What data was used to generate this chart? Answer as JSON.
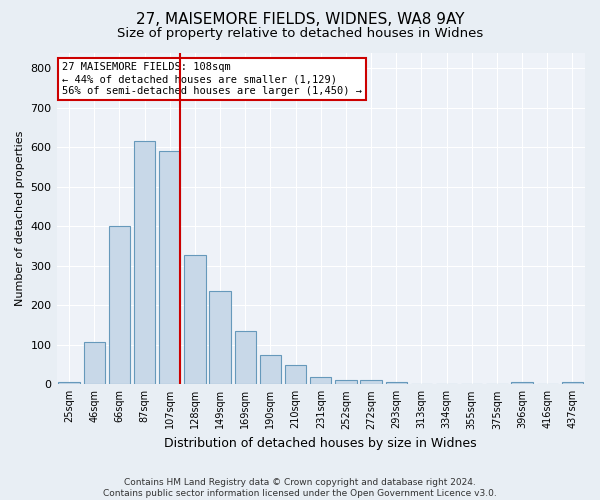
{
  "title": "27, MAISEMORE FIELDS, WIDNES, WA8 9AY",
  "subtitle": "Size of property relative to detached houses in Widnes",
  "xlabel": "Distribution of detached houses by size in Widnes",
  "ylabel": "Number of detached properties",
  "footer": "Contains HM Land Registry data © Crown copyright and database right 2024.\nContains public sector information licensed under the Open Government Licence v3.0.",
  "bin_labels": [
    "25sqm",
    "46sqm",
    "66sqm",
    "87sqm",
    "107sqm",
    "128sqm",
    "149sqm",
    "169sqm",
    "190sqm",
    "210sqm",
    "231sqm",
    "252sqm",
    "272sqm",
    "293sqm",
    "313sqm",
    "334sqm",
    "355sqm",
    "375sqm",
    "396sqm",
    "416sqm",
    "437sqm"
  ],
  "bar_heights": [
    5,
    107,
    400,
    615,
    590,
    328,
    235,
    135,
    75,
    50,
    18,
    12,
    12,
    5,
    0,
    0,
    0,
    0,
    5,
    0,
    5
  ],
  "bar_color": "#c8d8e8",
  "bar_edge_color": "#6699bb",
  "property_line_color": "#cc0000",
  "annotation_line1": "27 MAISEMORE FIELDS: 108sqm",
  "annotation_line2": "← 44% of detached houses are smaller (1,129)",
  "annotation_line3": "56% of semi-detached houses are larger (1,450) →",
  "annotation_box_color": "#cc0000",
  "ylim": [
    0,
    840
  ],
  "yticks": [
    0,
    100,
    200,
    300,
    400,
    500,
    600,
    700,
    800
  ],
  "background_color": "#e8eef4",
  "plot_background_color": "#eef2f8",
  "grid_color": "#ffffff",
  "title_fontsize": 11,
  "subtitle_fontsize": 9.5
}
